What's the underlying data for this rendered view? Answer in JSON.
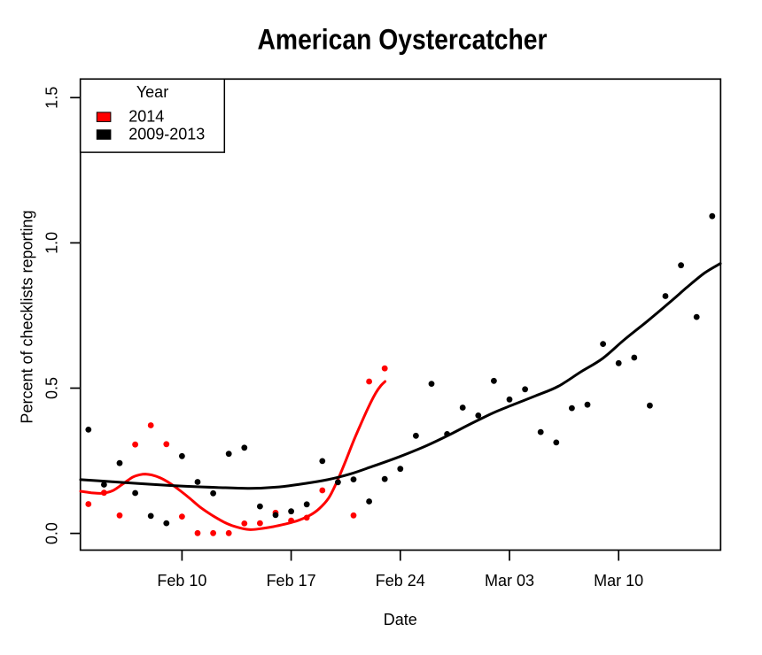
{
  "title": "American Oystercatcher",
  "axes": {
    "x_label": "Date",
    "y_label": "Percent of checklists reporting",
    "x_ticks": [
      "Feb 10",
      "Feb 17",
      "Feb 24",
      "Mar 03",
      "Mar 10"
    ],
    "y_ticks": [
      "0.0",
      "0.5",
      "1.0",
      "1.5"
    ]
  },
  "legend": {
    "title": "Year",
    "items": [
      {
        "label": "2014",
        "color": "#ff0000"
      },
      {
        "label": "2009-2013",
        "color": "#000000"
      }
    ]
  },
  "chart_data": {
    "type": "scatter",
    "title": "American Oystercatcher",
    "xlabel": "Date",
    "ylabel": "Percent of checklists reporting",
    "x_tick_labels": [
      "Feb 10",
      "Feb 17",
      "Feb 24",
      "Mar 03",
      "Mar 10"
    ],
    "x_tick_days": [
      6,
      13,
      20,
      27,
      34
    ],
    "y_tick_values": [
      0.0,
      0.5,
      1.0,
      1.5
    ],
    "xlim_days": [
      -0.52,
      40.54
    ],
    "ylim": [
      -0.058,
      1.564
    ],
    "x_day_zero": "Feb 04",
    "grid": false,
    "legend_position": "top-left",
    "series": [
      {
        "name": "2014",
        "color": "#ff0000",
        "points": [
          {
            "date": "Feb 04",
            "day": 0,
            "value": 0.101
          },
          {
            "date": "Feb 05",
            "day": 1,
            "value": 0.14
          },
          {
            "date": "Feb 06",
            "day": 2,
            "value": 0.062
          },
          {
            "date": "Feb 07",
            "day": 3,
            "value": 0.306
          },
          {
            "date": "Feb 08",
            "day": 4,
            "value": 0.372
          },
          {
            "date": "Feb 09",
            "day": 5,
            "value": 0.307
          },
          {
            "date": "Feb 10",
            "day": 6,
            "value": 0.058
          },
          {
            "date": "Feb 11",
            "day": 7,
            "value": 0.001
          },
          {
            "date": "Feb 12",
            "day": 8,
            "value": 0.001
          },
          {
            "date": "Feb 13",
            "day": 9,
            "value": 0.001
          },
          {
            "date": "Feb 14",
            "day": 10,
            "value": 0.034
          },
          {
            "date": "Feb 15",
            "day": 11,
            "value": 0.035
          },
          {
            "date": "Feb 16",
            "day": 12,
            "value": 0.071
          },
          {
            "date": "Feb 17",
            "day": 13,
            "value": 0.044
          },
          {
            "date": "Feb 18",
            "day": 14,
            "value": 0.054
          },
          {
            "date": "Feb 19",
            "day": 15,
            "value": 0.148
          },
          {
            "date": "Feb 21",
            "day": 17,
            "value": 0.062
          },
          {
            "date": "Feb 22",
            "day": 18,
            "value": 0.523
          },
          {
            "date": "Feb 23",
            "day": 19,
            "value": 0.568
          }
        ],
        "smooth_curve": [
          [
            -0.5,
            0.145
          ],
          [
            0.18,
            0.14
          ],
          [
            0.86,
            0.138
          ],
          [
            1.55,
            0.147
          ],
          [
            2.23,
            0.171
          ],
          [
            2.85,
            0.194
          ],
          [
            3.31,
            0.202
          ],
          [
            3.65,
            0.204
          ],
          [
            4.05,
            0.201
          ],
          [
            4.61,
            0.191
          ],
          [
            5.24,
            0.172
          ],
          [
            5.86,
            0.148
          ],
          [
            6.49,
            0.121
          ],
          [
            7.17,
            0.09
          ],
          [
            7.97,
            0.061
          ],
          [
            8.87,
            0.034
          ],
          [
            9.56,
            0.021
          ],
          [
            10.3,
            0.013
          ],
          [
            11.03,
            0.016
          ],
          [
            11.83,
            0.023
          ],
          [
            12.62,
            0.032
          ],
          [
            13.42,
            0.044
          ],
          [
            14.16,
            0.061
          ],
          [
            14.78,
            0.084
          ],
          [
            15.41,
            0.122
          ],
          [
            15.92,
            0.176
          ],
          [
            16.43,
            0.241
          ],
          [
            16.94,
            0.31
          ],
          [
            17.45,
            0.374
          ],
          [
            17.97,
            0.436
          ],
          [
            18.42,
            0.483
          ],
          [
            18.76,
            0.509
          ],
          [
            19.02,
            0.523
          ]
        ]
      },
      {
        "name": "2009-2013",
        "color": "#000000",
        "points": [
          {
            "date": "Feb 04",
            "day": 0,
            "value": 0.357
          },
          {
            "date": "Feb 05",
            "day": 1,
            "value": 0.168
          },
          {
            "date": "Feb 06",
            "day": 2,
            "value": 0.242
          },
          {
            "date": "Feb 07",
            "day": 3,
            "value": 0.139
          },
          {
            "date": "Feb 08",
            "day": 4,
            "value": 0.06
          },
          {
            "date": "Feb 09",
            "day": 5,
            "value": 0.035
          },
          {
            "date": "Feb 10",
            "day": 6,
            "value": 0.266
          },
          {
            "date": "Feb 11",
            "day": 7,
            "value": 0.177
          },
          {
            "date": "Feb 12",
            "day": 8,
            "value": 0.138
          },
          {
            "date": "Feb 13",
            "day": 9,
            "value": 0.274
          },
          {
            "date": "Feb 14",
            "day": 10,
            "value": 0.295
          },
          {
            "date": "Feb 15",
            "day": 11,
            "value": 0.093
          },
          {
            "date": "Feb 16",
            "day": 12,
            "value": 0.063
          },
          {
            "date": "Feb 17",
            "day": 13,
            "value": 0.076
          },
          {
            "date": "Feb 18",
            "day": 14,
            "value": 0.1
          },
          {
            "date": "Feb 19",
            "day": 15,
            "value": 0.249
          },
          {
            "date": "Feb 20",
            "day": 16,
            "value": 0.176
          },
          {
            "date": "Feb 21",
            "day": 17,
            "value": 0.186
          },
          {
            "date": "Feb 22",
            "day": 18,
            "value": 0.11
          },
          {
            "date": "Feb 23",
            "day": 19,
            "value": 0.187
          },
          {
            "date": "Feb 24",
            "day": 20,
            "value": 0.222
          },
          {
            "date": "Feb 25",
            "day": 21,
            "value": 0.336
          },
          {
            "date": "Feb 26",
            "day": 22,
            "value": 0.515
          },
          {
            "date": "Feb 27",
            "day": 23,
            "value": 0.342
          },
          {
            "date": "Feb 28",
            "day": 24,
            "value": 0.433
          },
          {
            "date": "Mar 01",
            "day": 25,
            "value": 0.406
          },
          {
            "date": "Mar 02",
            "day": 26,
            "value": 0.525
          },
          {
            "date": "Mar 03",
            "day": 27,
            "value": 0.461
          },
          {
            "date": "Mar 04",
            "day": 28,
            "value": 0.496
          },
          {
            "date": "Mar 05",
            "day": 29,
            "value": 0.349
          },
          {
            "date": "Mar 06",
            "day": 30,
            "value": 0.313
          },
          {
            "date": "Mar 07",
            "day": 31,
            "value": 0.431
          },
          {
            "date": "Mar 08",
            "day": 32,
            "value": 0.443
          },
          {
            "date": "Mar 09",
            "day": 33,
            "value": 0.652
          },
          {
            "date": "Mar 10",
            "day": 34,
            "value": 0.586
          },
          {
            "date": "Mar 11",
            "day": 35,
            "value": 0.605
          },
          {
            "date": "Mar 12",
            "day": 36,
            "value": 0.44
          },
          {
            "date": "Mar 13",
            "day": 37,
            "value": 0.817
          },
          {
            "date": "Mar 14",
            "day": 38,
            "value": 0.923
          },
          {
            "date": "Mar 15",
            "day": 39,
            "value": 0.745
          },
          {
            "date": "Mar 16",
            "day": 40,
            "value": 1.092
          }
        ],
        "smooth_curve": [
          [
            -0.5,
            0.185
          ],
          [
            1.72,
            0.177
          ],
          [
            3.99,
            0.169
          ],
          [
            6.26,
            0.162
          ],
          [
            8.25,
            0.158
          ],
          [
            10.3,
            0.155
          ],
          [
            12.23,
            0.16
          ],
          [
            13.93,
            0.172
          ],
          [
            15.35,
            0.185
          ],
          [
            16.77,
            0.204
          ],
          [
            18.19,
            0.23
          ],
          [
            19.9,
            0.263
          ],
          [
            21.6,
            0.3
          ],
          [
            23.02,
            0.336
          ],
          [
            24.44,
            0.375
          ],
          [
            25.92,
            0.414
          ],
          [
            27.28,
            0.444
          ],
          [
            28.7,
            0.474
          ],
          [
            30.12,
            0.506
          ],
          [
            31.55,
            0.555
          ],
          [
            32.97,
            0.602
          ],
          [
            34.39,
            0.668
          ],
          [
            35.81,
            0.729
          ],
          [
            37.23,
            0.793
          ],
          [
            38.36,
            0.846
          ],
          [
            39.5,
            0.896
          ],
          [
            40.52,
            0.929
          ]
        ]
      }
    ]
  }
}
